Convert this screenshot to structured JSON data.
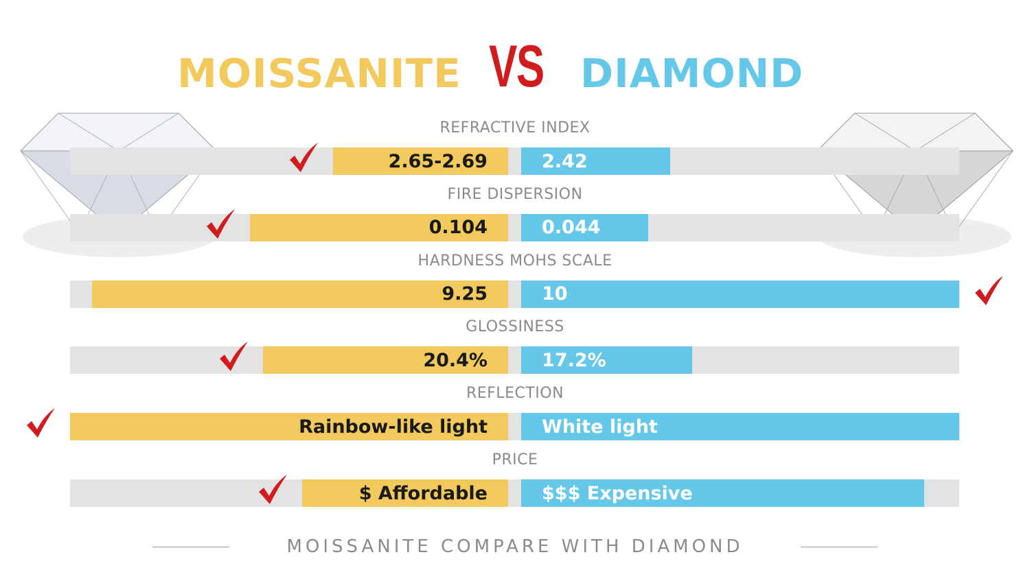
{
  "header": {
    "left": "MOISSANITE",
    "vs": "VS",
    "right": "DIAMOND"
  },
  "colors": {
    "moissanite": "#f2c95c",
    "diamond": "#66c8e8",
    "vs": "#d01c1f",
    "track": "#e3e3e3",
    "check": "#d01c1f"
  },
  "chart_data": {
    "type": "bar",
    "categories": [
      "REFRACTIVE INDEX",
      "FIRE DISPERSION",
      "HARDNESS MOHS SCALE",
      "GLOSSINESS",
      "REFLECTION",
      "PRICE"
    ],
    "series": [
      {
        "name": "MOISSANITE",
        "labels": [
          "2.65-2.69",
          "0.104",
          "9.25",
          "20.4%",
          "Rainbow-like light",
          "$ Affordable"
        ],
        "fill_percent": [
          40,
          59,
          95,
          56,
          100,
          47
        ]
      },
      {
        "name": "DIAMOND",
        "labels": [
          "2.42",
          "0.044",
          "10",
          "17.2%",
          "White light",
          "$$$ Expensive"
        ],
        "fill_percent": [
          34,
          29,
          100,
          39,
          100,
          92
        ]
      }
    ],
    "winner": [
      "MOISSANITE",
      "MOISSANITE",
      "DIAMOND",
      "MOISSANITE",
      "MOISSANITE",
      "MOISSANITE"
    ]
  },
  "footer": "MOISSANITE COMPARE WITH DIAMOND",
  "icons": {
    "check": "check-mark-icon",
    "gem": "diamond-gem-icon"
  }
}
